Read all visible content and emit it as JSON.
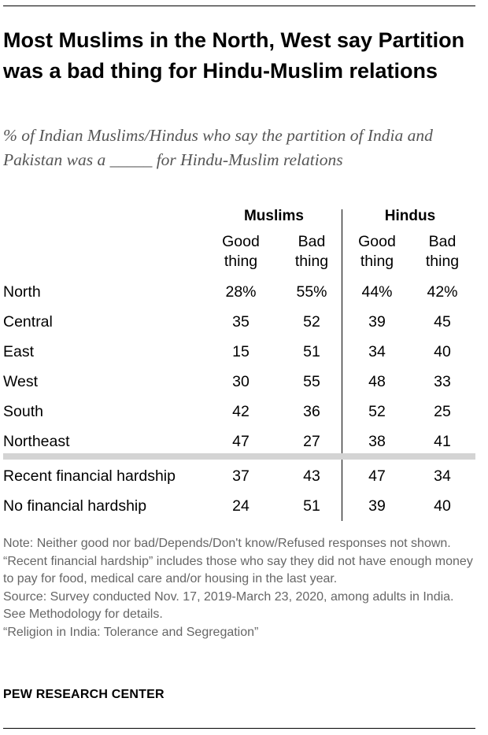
{
  "title": "Most Muslims in the North, West say Partition was a bad thing for Hindu-Muslim relations",
  "subtitle": "% of Indian Muslims/Hindus who say the partition of India and Pakistan was a _____ for Hindu-Muslim relations",
  "chart_data": {
    "type": "table",
    "groups": [
      "Muslims",
      "Hindus"
    ],
    "columns": [
      "Good thing",
      "Bad thing",
      "Good thing",
      "Bad thing"
    ],
    "rows": [
      {
        "label": "North",
        "values": [
          "28%",
          "55%",
          "44%",
          "42%"
        ]
      },
      {
        "label": "Central",
        "values": [
          "35",
          "52",
          "39",
          "45"
        ]
      },
      {
        "label": "East",
        "values": [
          "15",
          "51",
          "34",
          "40"
        ]
      },
      {
        "label": "West",
        "values": [
          "30",
          "55",
          "48",
          "33"
        ]
      },
      {
        "label": "South",
        "values": [
          "42",
          "36",
          "52",
          "25"
        ]
      },
      {
        "label": "Northeast",
        "values": [
          "47",
          "27",
          "38",
          "41"
        ]
      },
      {
        "label": "Recent financial hardship",
        "values": [
          "37",
          "43",
          "47",
          "34"
        ]
      },
      {
        "label": "No financial hardship",
        "values": [
          "24",
          "51",
          "39",
          "40"
        ]
      }
    ]
  },
  "notes": [
    "Note: Neither good nor bad/Depends/Don't know/Refused responses not shown. “Recent financial hardship” includes those who say they did not have enough money to pay for food, medical care and/or housing in the last year.",
    "Source: Survey conducted Nov. 17, 2019-March 23, 2020, among adults in India. See Methodology for details.",
    "“Religion in India: Tolerance and Segregation”"
  ],
  "branding": "PEW RESEARCH CENTER"
}
